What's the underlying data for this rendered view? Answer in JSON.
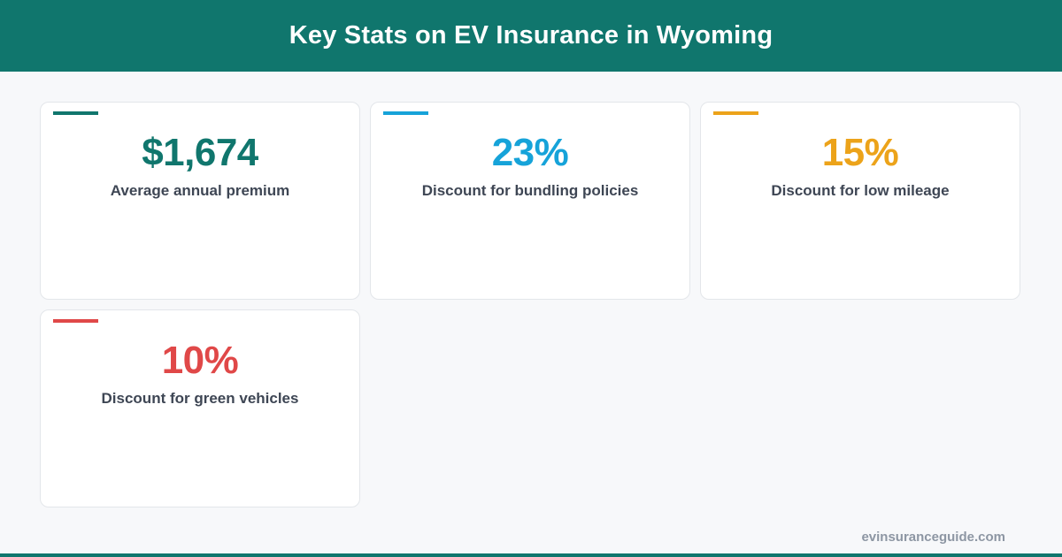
{
  "header": {
    "title": "Key Stats on EV Insurance in Wyoming"
  },
  "stats": [
    {
      "value": "$1,674",
      "label": "Average annual premium",
      "color": "#10766d"
    },
    {
      "value": "23%",
      "label": "Discount for bundling policies",
      "color": "#16a3d9"
    },
    {
      "value": "15%",
      "label": "Discount for low mileage",
      "color": "#eca31a"
    },
    {
      "value": "10%",
      "label": "Discount for green vehicles",
      "color": "#e04848"
    }
  ],
  "footer": {
    "site": "evinsuranceguide.com"
  },
  "colors": {
    "brand": "#10766d",
    "background": "#f7f8fa"
  }
}
